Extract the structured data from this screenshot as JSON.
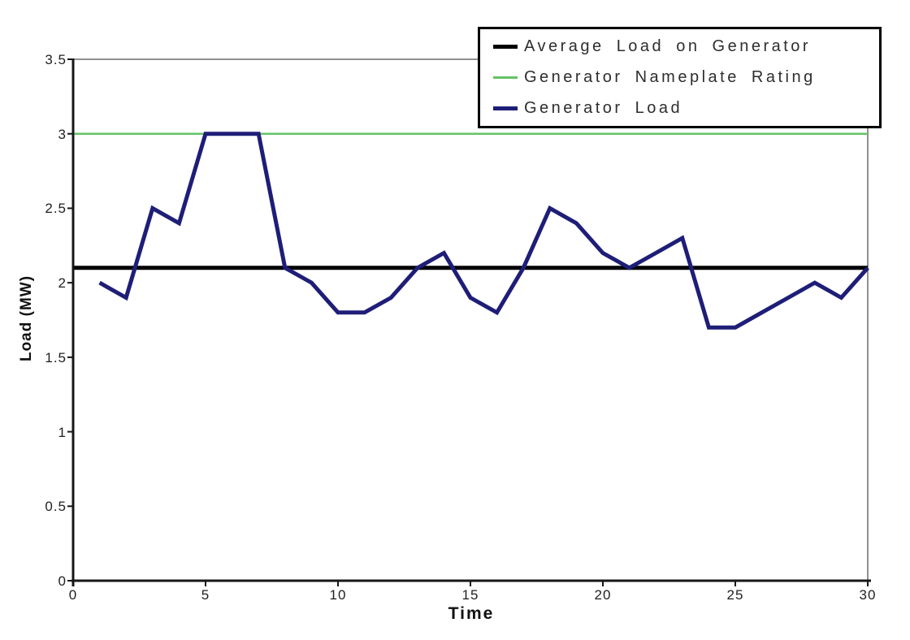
{
  "chart_data": {
    "type": "line",
    "title": "",
    "xlabel": "Time",
    "ylabel": "Load (MW)",
    "xlim": [
      0,
      30
    ],
    "ylim": [
      0,
      3.5
    ],
    "grid": false,
    "legend_position": "top-right",
    "x_ticks": [
      0,
      5,
      10,
      15,
      20,
      25,
      30
    ],
    "x_tick_labels": [
      "0",
      "5",
      "10",
      "15",
      "20",
      "25",
      "30"
    ],
    "y_ticks": [
      0,
      0.5,
      1,
      1.5,
      2,
      2.5,
      3,
      3.5
    ],
    "y_tick_labels": [
      "0",
      "0.5",
      "1",
      "1.5",
      "2",
      "2.5",
      "3",
      "3.5"
    ],
    "x": [
      1,
      2,
      3,
      4,
      5,
      6,
      7,
      8,
      9,
      10,
      11,
      12,
      13,
      14,
      15,
      16,
      17,
      18,
      19,
      20,
      21,
      22,
      23,
      24,
      25,
      26,
      27,
      28,
      29,
      30
    ],
    "series": [
      {
        "name": "Average Load on Generator",
        "kind": "hline",
        "value": 2.1,
        "color": "#000000",
        "stroke_width": 5,
        "swatch_height": 5
      },
      {
        "name": "Generator Nameplate Rating",
        "kind": "hline",
        "value": 3.0,
        "color": "#66c266",
        "stroke_width": 2.5,
        "swatch_height": 3
      },
      {
        "name": "Generator Load",
        "kind": "line",
        "color": "#1e1e78",
        "stroke_width": 5,
        "swatch_height": 5,
        "values": [
          2.0,
          1.9,
          2.5,
          2.4,
          3.0,
          3.0,
          3.0,
          2.1,
          2.0,
          1.8,
          1.8,
          1.9,
          2.1,
          2.2,
          1.9,
          1.8,
          2.1,
          2.5,
          2.4,
          2.2,
          2.1,
          2.2,
          2.3,
          1.7,
          1.7,
          1.8,
          1.9,
          2.0,
          1.9,
          2.1
        ]
      }
    ],
    "colors": {
      "axis": "#171717",
      "plot_border": "#909090",
      "background": "#ffffff"
    }
  }
}
